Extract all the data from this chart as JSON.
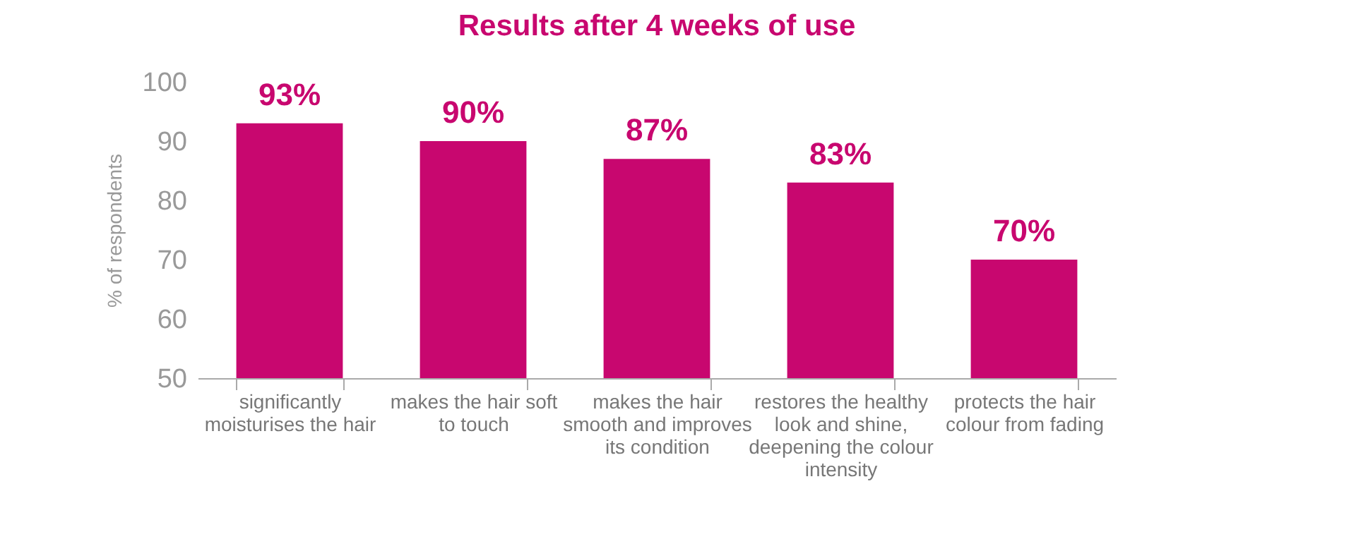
{
  "chart_data": {
    "type": "bar",
    "title": "Results after 4 weeks of use",
    "ylabel": "% of respondents",
    "categories": [
      "significantly moisturises the hair",
      "makes the hair soft to touch",
      "makes the hair smooth and improves its condition",
      "restores the healthy look and shine, deepening the colour intensity",
      "protects the hair colour from fading"
    ],
    "values": [
      93,
      90,
      87,
      83,
      70
    ],
    "value_labels": [
      "93%",
      "90%",
      "87%",
      "83%",
      "70%"
    ],
    "color": "#c8076f",
    "ylim": [
      50,
      100
    ],
    "yticks": [
      50,
      60,
      70,
      80,
      90,
      100
    ],
    "grid": false
  }
}
